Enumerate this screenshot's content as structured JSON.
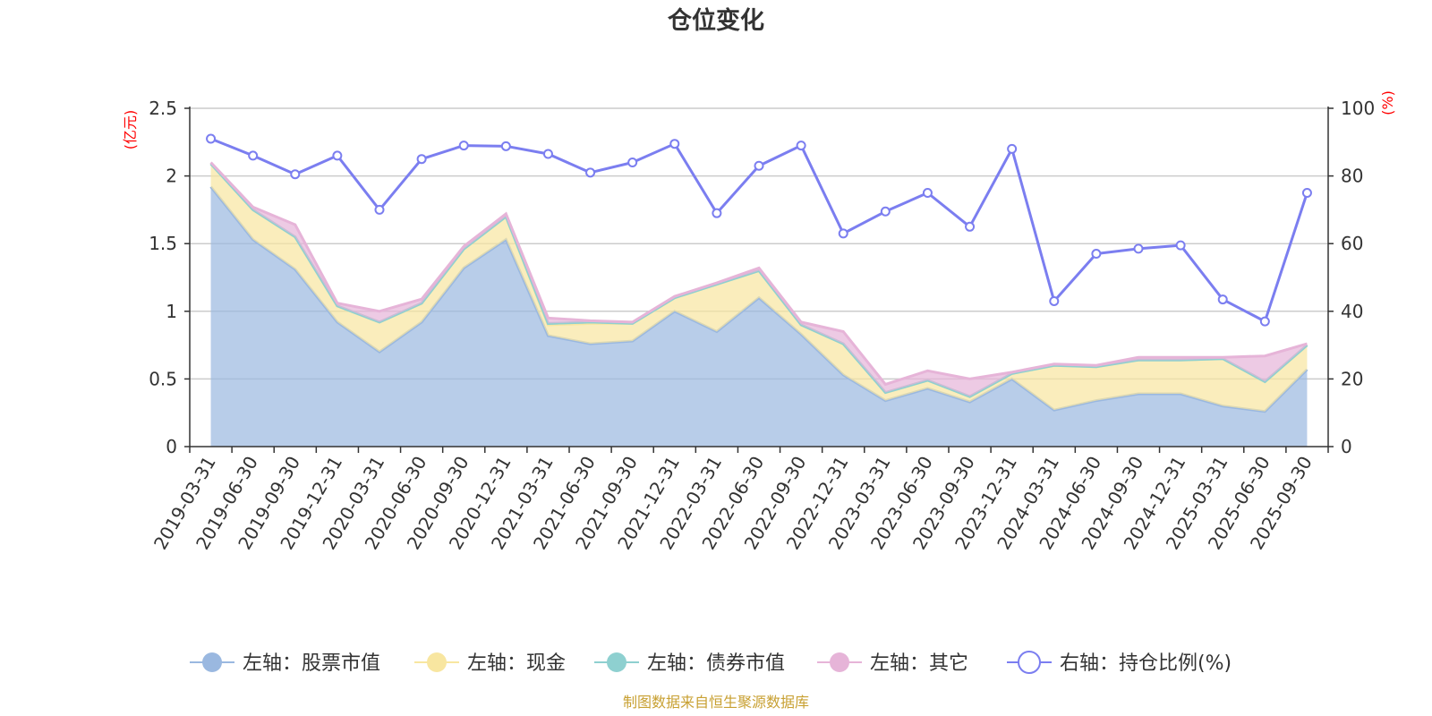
{
  "chart_data": {
    "type": "area",
    "title": "仓位变化",
    "left_unit": "(亿元)",
    "right_unit": "(%)",
    "categories": [
      "2019-03-31",
      "2019-06-30",
      "2019-09-30",
      "2019-12-31",
      "2020-03-31",
      "2020-06-30",
      "2020-09-30",
      "2020-12-31",
      "2021-03-31",
      "2021-06-30",
      "2021-09-30",
      "2021-12-31",
      "2022-03-31",
      "2022-06-30",
      "2022-09-30",
      "2022-12-31",
      "2023-03-31",
      "2023-06-30",
      "2023-09-30",
      "2023-12-31",
      "2024-03-31",
      "2024-06-30",
      "2024-09-30",
      "2024-12-31",
      "2025-03-31",
      "2025-06-30",
      "2025-09-30"
    ],
    "y_left": {
      "min": 0,
      "max": 2.5,
      "ticks": [
        "0",
        "0.5",
        "1",
        "1.5",
        "2",
        "2.5"
      ]
    },
    "y_right": {
      "min": 0,
      "max": 100,
      "ticks": [
        "0",
        "20",
        "40",
        "60",
        "80",
        "100"
      ]
    },
    "grid": true,
    "legend_position": "bottom",
    "series": [
      {
        "name": "左轴：股票市值",
        "axis": "left",
        "stack": true,
        "color": "#9ab8e0",
        "values": [
          1.92,
          1.53,
          1.31,
          0.92,
          0.7,
          0.92,
          1.32,
          1.53,
          0.82,
          0.76,
          0.78,
          1.0,
          0.85,
          1.1,
          0.83,
          0.53,
          0.34,
          0.43,
          0.33,
          0.5,
          0.27,
          0.34,
          0.39,
          0.39,
          0.3,
          0.26,
          0.57
        ]
      },
      {
        "name": "左轴：现金",
        "axis": "left",
        "stack": true,
        "color": "#f8e6a0",
        "values": [
          0.17,
          0.22,
          0.24,
          0.12,
          0.22,
          0.14,
          0.14,
          0.17,
          0.08,
          0.15,
          0.13,
          0.1,
          0.35,
          0.2,
          0.07,
          0.23,
          0.06,
          0.06,
          0.04,
          0.04,
          0.33,
          0.25,
          0.25,
          0.25,
          0.35,
          0.22,
          0.18
        ]
      },
      {
        "name": "左轴：债券市值",
        "axis": "left",
        "stack": true,
        "color": "#8ed0d0",
        "values": [
          0,
          0,
          0,
          0,
          0,
          0,
          0,
          0,
          0.01,
          0.01,
          0,
          0,
          0,
          0,
          0,
          0,
          0,
          0,
          0,
          0,
          0,
          0,
          0,
          0,
          0,
          0,
          0
        ]
      },
      {
        "name": "左轴：其它",
        "axis": "left",
        "stack": true,
        "color": "#e6b4d8",
        "values": [
          0.01,
          0.02,
          0.09,
          0.02,
          0.08,
          0.03,
          0.02,
          0.02,
          0.04,
          0.01,
          0.01,
          0.01,
          0.01,
          0.02,
          0.02,
          0.09,
          0.06,
          0.07,
          0.13,
          0.01,
          0.01,
          0.01,
          0.02,
          0.02,
          0.01,
          0.19,
          0.01
        ]
      },
      {
        "name": "右轴：持仓比例(%)",
        "axis": "right",
        "color": "#7b7ef0",
        "values": [
          91,
          86,
          80.5,
          86,
          70,
          85,
          89,
          88.8,
          86.5,
          81,
          84,
          89.5,
          69,
          83,
          89,
          63,
          69.5,
          75,
          65,
          88,
          43,
          57,
          58.5,
          59.5,
          43.5,
          37,
          75
        ]
      }
    ]
  },
  "source_note": "制图数据来自恒生聚源数据库"
}
